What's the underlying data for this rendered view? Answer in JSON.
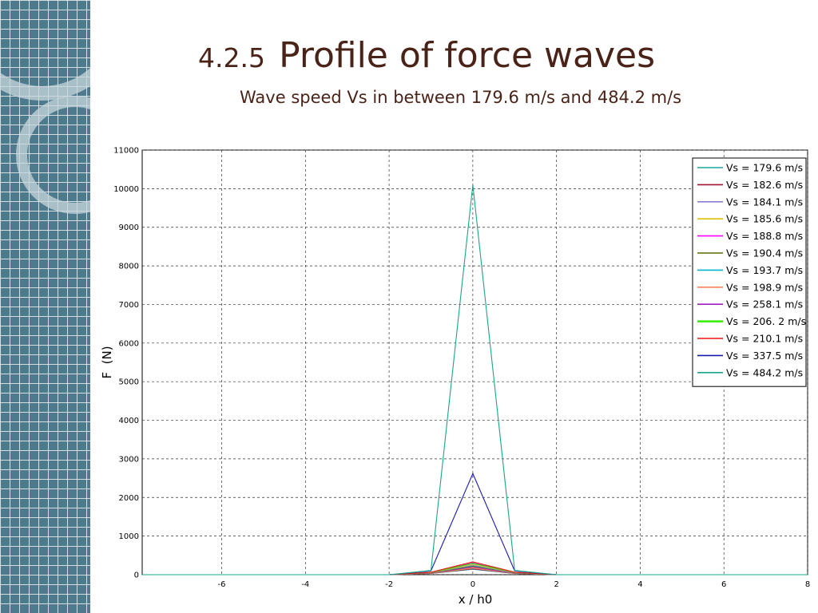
{
  "slide": {
    "section_number": "4.2.5",
    "title": "Profile of force waves",
    "subtitle": "Wave speed Vs in between 179.6 m/s and 484.2 m/s"
  },
  "chart_data": {
    "type": "line",
    "title": "",
    "xlabel": "x / h0",
    "ylabel": "F  (N)",
    "xlim": [
      -7.9,
      8
    ],
    "ylim": [
      0,
      11000
    ],
    "xticks": [
      -6,
      -4,
      -2,
      0,
      2,
      4,
      6,
      8
    ],
    "yticks": [
      0,
      1000,
      2000,
      3000,
      4000,
      5000,
      6000,
      7000,
      8000,
      9000,
      10000,
      11000
    ],
    "grid": true,
    "legend_position": "top-right",
    "x": [
      -7.9,
      -2,
      -1,
      0,
      1,
      2,
      8
    ],
    "series": [
      {
        "name": "Vs = 179.6 m/s",
        "color": "#1aa59a",
        "values": [
          0,
          0,
          30,
          140,
          30,
          0,
          0
        ]
      },
      {
        "name": "Vs = 182.6 m/s",
        "color": "#a0142d",
        "values": [
          0,
          0,
          30,
          150,
          30,
          0,
          0
        ]
      },
      {
        "name": "Vs = 184.1 m/s",
        "color": "#8a7ad6",
        "values": [
          0,
          0,
          35,
          165,
          35,
          0,
          0
        ]
      },
      {
        "name": "Vs = 185.6 m/s",
        "color": "#e0c000",
        "values": [
          0,
          0,
          35,
          175,
          35,
          0,
          0
        ]
      },
      {
        "name": "Vs = 188.8 m/s",
        "color": "#ff00ff",
        "values": [
          0,
          0,
          40,
          195,
          40,
          0,
          0
        ]
      },
      {
        "name": "Vs = 190.4 m/s",
        "color": "#5a6b00",
        "values": [
          0,
          0,
          45,
          215,
          45,
          0,
          0
        ]
      },
      {
        "name": "Vs = 193.7 m/s",
        "color": "#00b4cc",
        "values": [
          0,
          0,
          50,
          235,
          50,
          0,
          0
        ]
      },
      {
        "name": "Vs  = 198.9 m/s",
        "color": "#ff8060",
        "values": [
          0,
          0,
          55,
          255,
          55,
          0,
          0
        ]
      },
      {
        "name": "Vs = 258.1 m/s",
        "color": "#a020c0",
        "values": [
          0,
          0,
          60,
          300,
          60,
          0,
          0
        ]
      },
      {
        "name": "Vs = 206. 2 m/s",
        "color": "#33ee00",
        "values": [
          0,
          0,
          60,
          285,
          60,
          0,
          0
        ]
      },
      {
        "name": "Vs = 210.1 m/s",
        "color": "#ee1111",
        "values": [
          0,
          0,
          65,
          330,
          65,
          0,
          0
        ]
      },
      {
        "name": "Vs = 337.5 m/s",
        "color": "#1a1ab0",
        "values": [
          0,
          0,
          100,
          2620,
          100,
          0,
          0
        ]
      },
      {
        "name": "Vs = 484.2 m/s",
        "color": "#1aa58a",
        "values": [
          0,
          0,
          110,
          10100,
          110,
          0,
          0
        ]
      }
    ]
  }
}
